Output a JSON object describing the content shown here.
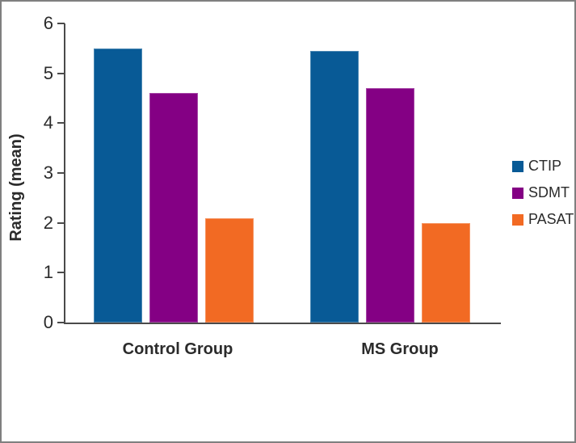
{
  "figure": {
    "background": "#FFFFFF",
    "border_color": "#7F7F7F"
  },
  "chart_data": {
    "type": "bar",
    "title": "",
    "ylabel": "Rating (mean)",
    "xlabel": "",
    "categories": [
      "Control Group",
      "MS Group"
    ],
    "series": [
      {
        "name": "CTIP",
        "color": "#085A96",
        "values": [
          5.5,
          5.45
        ]
      },
      {
        "name": "SDMT",
        "color": "#840084",
        "values": [
          4.6,
          4.7
        ]
      },
      {
        "name": "PASAT",
        "color": "#F26A23",
        "values": [
          2.1,
          2.0
        ]
      }
    ],
    "ylim": [
      0,
      6
    ],
    "yticks": [
      0,
      1,
      2,
      3,
      4,
      5,
      6
    ],
    "grid": false,
    "legend_position": "right",
    "axis_color": "#4A4A4A",
    "label_color": "#2B2B2B"
  }
}
